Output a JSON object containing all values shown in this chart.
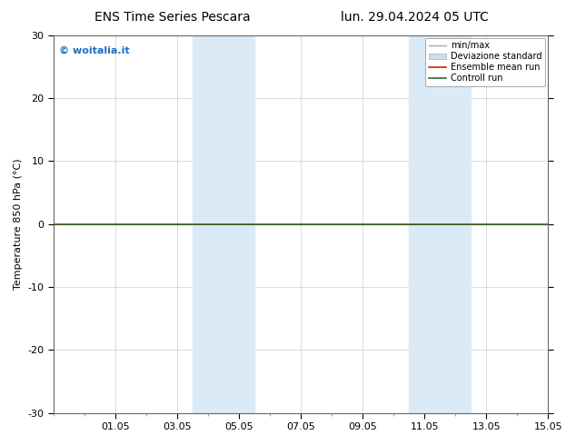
{
  "title_left": "ENS Time Series Pescara",
  "title_right": "lun. 29.04.2024 05 UTC",
  "ylabel": "Temperature 850 hPa (°C)",
  "watermark": "© woitalia.it",
  "watermark_color": "#1a6fc4",
  "xlim_min": 0,
  "xlim_max": 16,
  "ylim": [
    -30,
    30
  ],
  "yticks": [
    -30,
    -20,
    -10,
    0,
    10,
    20,
    30
  ],
  "xtick_labels": [
    "01.05",
    "03.05",
    "05.05",
    "07.05",
    "09.05",
    "11.05",
    "13.05",
    "15.05"
  ],
  "xtick_positions": [
    2,
    4,
    6,
    8,
    10,
    12,
    14,
    16
  ],
  "shaded_bands": [
    [
      4.5,
      5.5
    ],
    [
      5.5,
      6.5
    ],
    [
      11.5,
      12.5
    ],
    [
      12.5,
      13.5
    ]
  ],
  "shade_color": "#dbeaf7",
  "control_run_y": 0.0,
  "ensemble_mean_y": 0.0,
  "control_run_color": "#2d6a2d",
  "ensemble_mean_color": "#cc2200",
  "minmax_color": "#aaaaaa",
  "std_fill_color": "#ccddef",
  "background_color": "#ffffff",
  "plot_bg_color": "#ffffff",
  "grid_color": "#cccccc",
  "legend_labels": [
    "min/max",
    "Deviazione standard",
    "Ensemble mean run",
    "Controll run"
  ],
  "title_fontsize": 10,
  "ylabel_fontsize": 8,
  "tick_fontsize": 8,
  "legend_fontsize": 7,
  "watermark_fontsize": 8
}
